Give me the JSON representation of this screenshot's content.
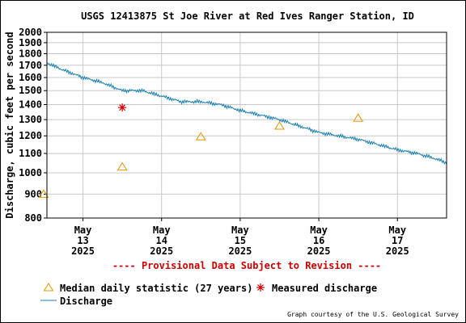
{
  "chart_data": {
    "type": "line",
    "title": "USGS 12413875 St Joe River at Red Ives Ranger Station, ID",
    "ylabel": "Discharge, cubic feet per second",
    "xlabel": "",
    "ylim": [
      800,
      2000
    ],
    "y_scale": "log",
    "grid": true,
    "y_ticks": [
      "800",
      "900",
      "1000",
      "1100",
      "1200",
      "1300",
      "1400",
      "1500",
      "1600",
      "1700",
      "1800",
      "1900",
      "2000"
    ],
    "x_ticks": [
      {
        "month": "May",
        "day": "13",
        "year": "2025"
      },
      {
        "month": "May",
        "day": "14",
        "year": "2025"
      },
      {
        "month": "May",
        "day": "15",
        "year": "2025"
      },
      {
        "month": "May",
        "day": "16",
        "year": "2025"
      },
      {
        "month": "May",
        "day": "17",
        "year": "2025"
      }
    ],
    "x_range": [
      "2025-05-12 13:00",
      "2025-05-17 15:00"
    ],
    "series": [
      {
        "name": "Discharge",
        "color": "#1a80b0",
        "x": [
          "2025-05-12 13:00",
          "2025-05-12 18:00",
          "2025-05-13 00:00",
          "2025-05-13 06:00",
          "2025-05-13 12:00",
          "2025-05-13 18:00",
          "2025-05-14 00:00",
          "2025-05-14 06:00",
          "2025-05-14 12:00",
          "2025-05-14 18:00",
          "2025-05-15 00:00",
          "2025-05-15 06:00",
          "2025-05-15 12:00",
          "2025-05-15 18:00",
          "2025-05-16 00:00",
          "2025-05-16 06:00",
          "2025-05-16 12:00",
          "2025-05-16 18:00",
          "2025-05-17 00:00",
          "2025-05-17 06:00",
          "2025-05-17 12:00",
          "2025-05-17 15:00"
        ],
        "values": [
          1720,
          1660,
          1600,
          1560,
          1500,
          1500,
          1460,
          1420,
          1420,
          1400,
          1360,
          1330,
          1300,
          1260,
          1220,
          1200,
          1180,
          1150,
          1120,
          1100,
          1070,
          1050
        ]
      },
      {
        "name": "Median daily statistic (27 years)",
        "color": "#e69500",
        "marker": "triangle",
        "x": [
          "2025-05-12 12:00",
          "2025-05-13 12:00",
          "2025-05-14 12:00",
          "2025-05-15 12:00",
          "2025-05-16 12:00"
        ],
        "values": [
          900,
          1030,
          1195,
          1260,
          1310
        ]
      },
      {
        "name": "Measured discharge",
        "color": "#cc0000",
        "marker": "asterisk",
        "x": [
          "2025-05-13 12:00"
        ],
        "values": [
          1380
        ]
      }
    ],
    "provisional_note": "---- Provisional Data Subject to Revision ----",
    "credit": "Graph courtesy of the U.S. Geological Survey",
    "legend_placement": "bottom"
  }
}
